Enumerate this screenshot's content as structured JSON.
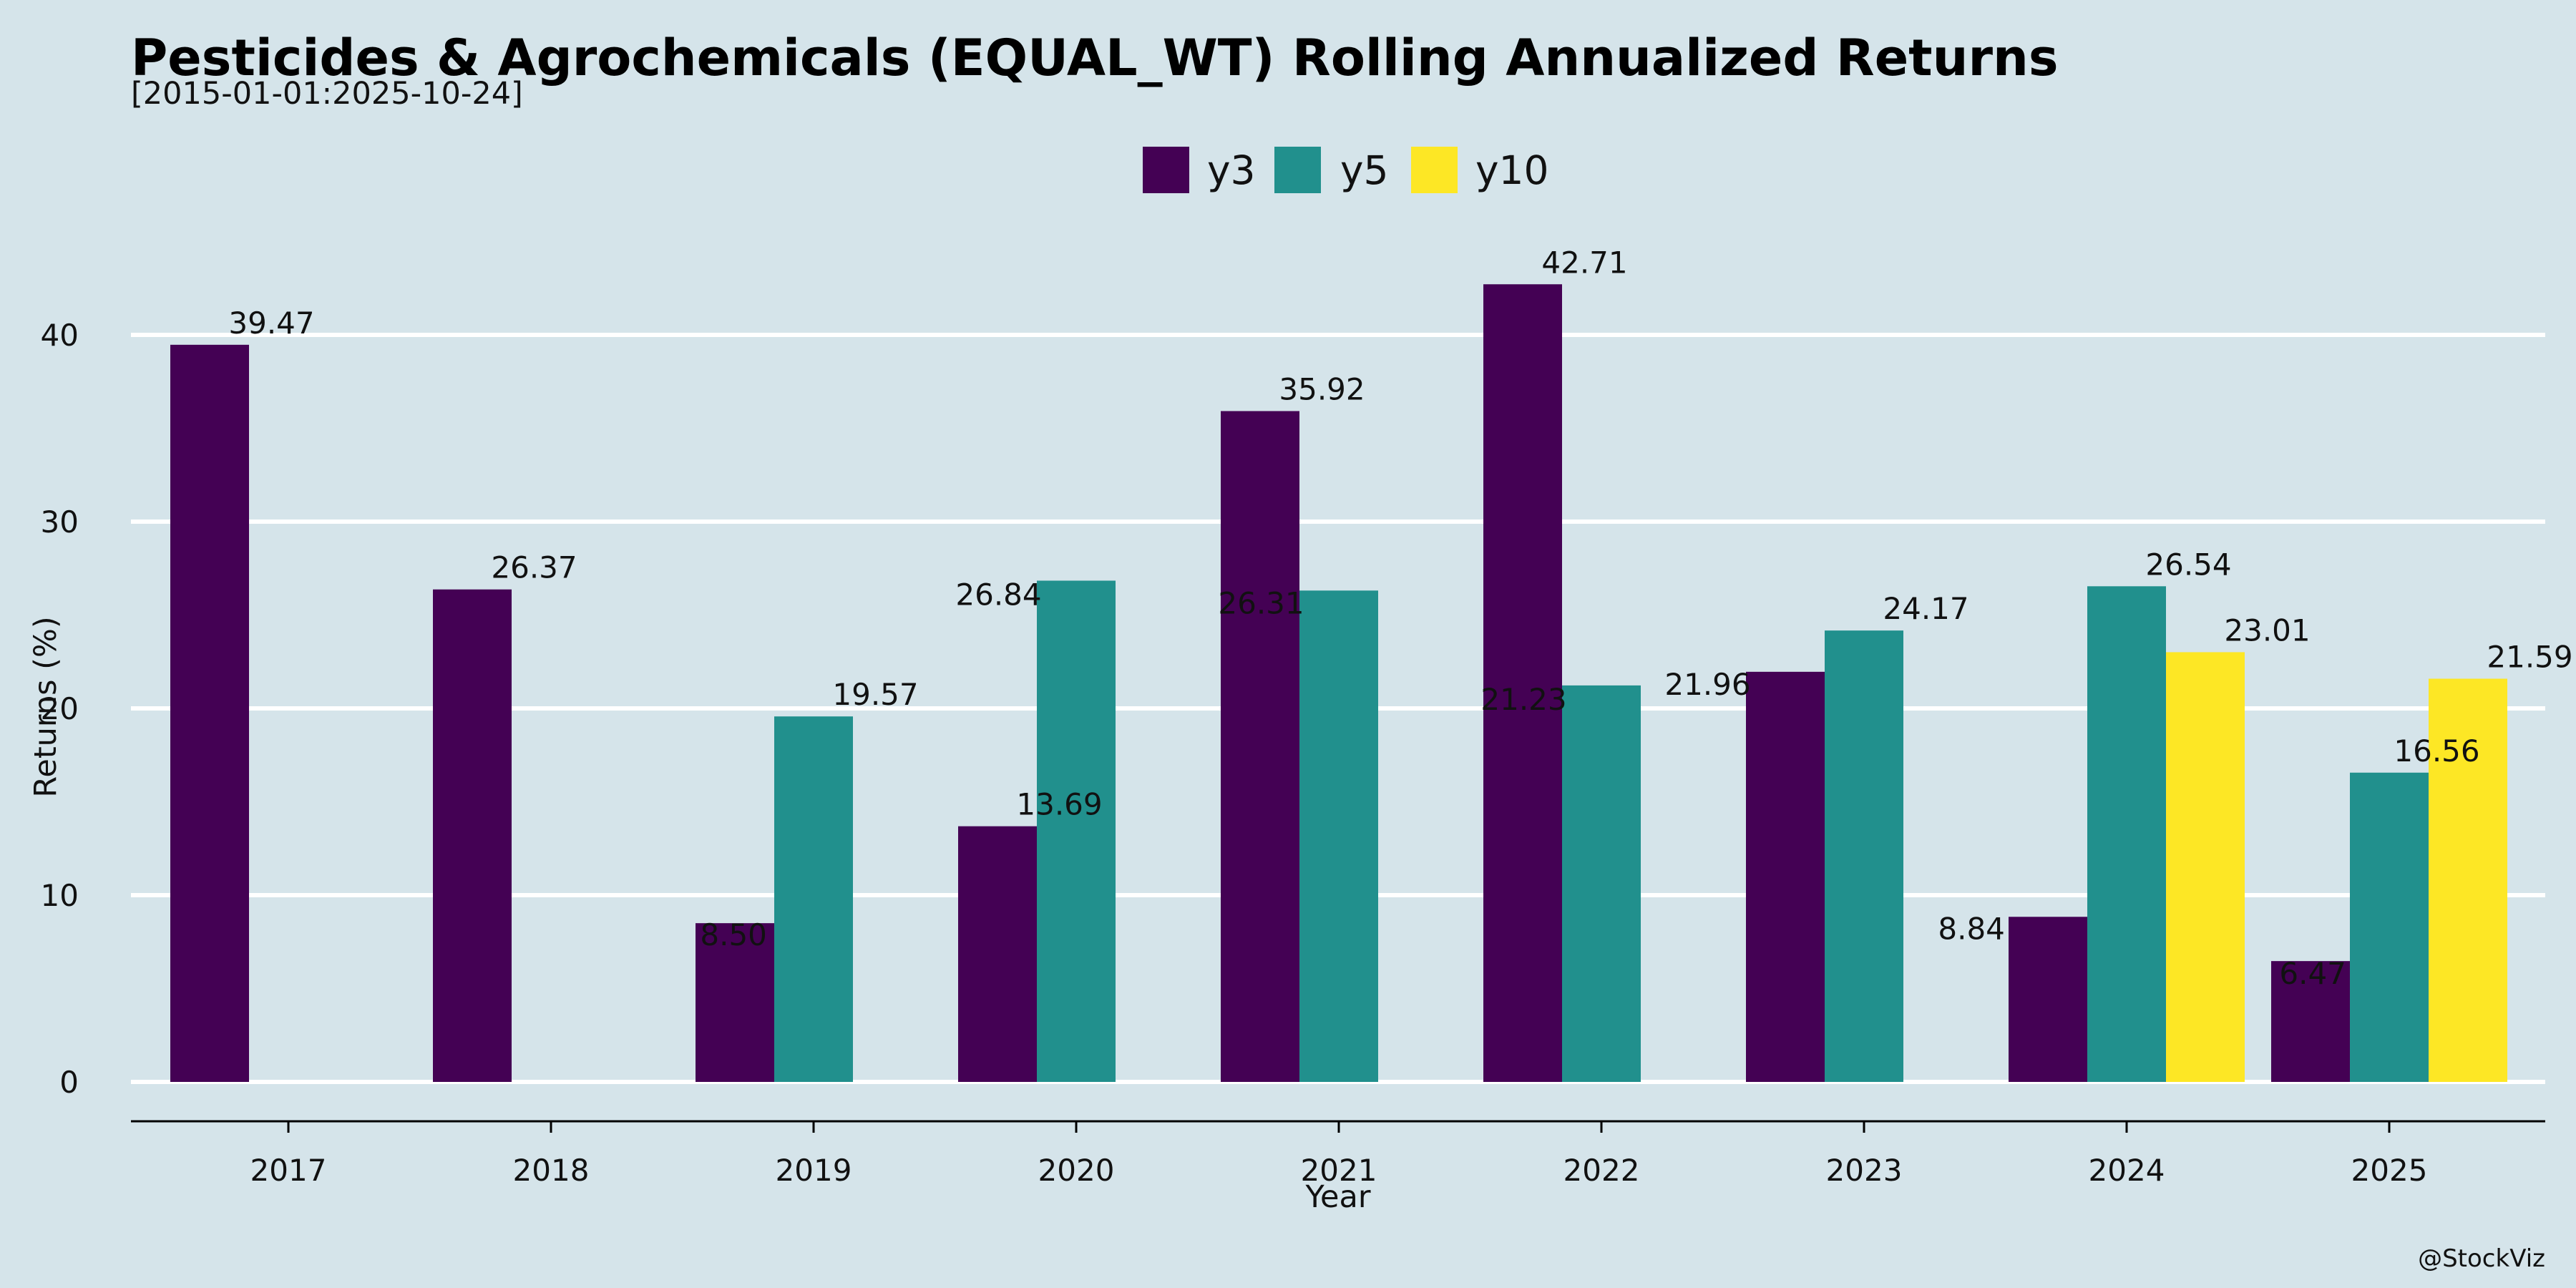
{
  "chart_data": {
    "type": "bar",
    "title": "Pesticides & Agrochemicals (EQUAL_WT) Rolling Annualized Returns",
    "subtitle": "[2015-01-01:2025-10-24]",
    "xlabel": "Year",
    "ylabel": "Returns (%)",
    "ylim": [
      -2,
      45
    ],
    "yticks": [
      0,
      10,
      20,
      30,
      40
    ],
    "grid": true,
    "legend_position": "top-center",
    "categories": [
      "2017",
      "2018",
      "2019",
      "2020",
      "2021",
      "2022",
      "2023",
      "2024",
      "2025"
    ],
    "series": [
      {
        "name": "y3",
        "color": "#440154",
        "values": [
          39.47,
          26.37,
          8.5,
          13.69,
          35.92,
          42.71,
          21.96,
          8.84,
          6.47
        ],
        "labels": [
          "39.47",
          "26.37",
          "8.50",
          "13.69",
          "35.92",
          "42.71",
          "21.96",
          "8.84",
          "6.47"
        ]
      },
      {
        "name": "y5",
        "color": "#21908d",
        "values": [
          null,
          null,
          19.57,
          26.84,
          26.31,
          21.23,
          24.17,
          26.54,
          16.56
        ],
        "labels": [
          "",
          "",
          "19.57",
          "26.84",
          "26.31",
          "21.23",
          "24.17",
          "26.54",
          "16.56"
        ]
      },
      {
        "name": "y10",
        "color": "#fde725",
        "values": [
          null,
          null,
          null,
          null,
          null,
          null,
          null,
          23.01,
          21.59
        ],
        "labels": [
          "",
          "",
          "",
          "",
          "",
          "",
          "",
          "23.01",
          "21.59"
        ]
      }
    ]
  },
  "credit": "@StockViz"
}
